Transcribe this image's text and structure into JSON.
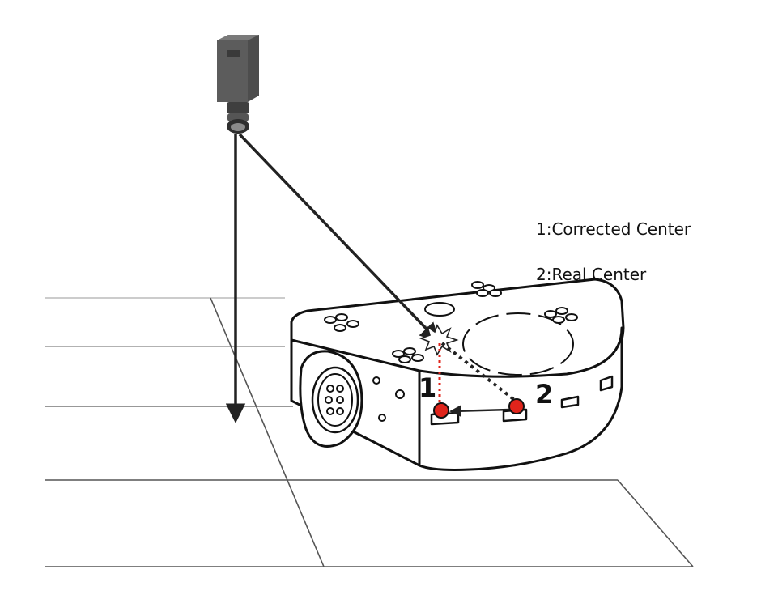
{
  "legend": {
    "item1": "1:Corrected Center",
    "item2": "2:Real Center"
  },
  "markers": {
    "corrected_label": "1",
    "real_label": "2"
  },
  "icons": {
    "camera": "camera-icon",
    "robot": "robot-icon",
    "impact": "impact-burst-icon"
  },
  "colors": {
    "line": "#222222",
    "floor_grid": "#555555",
    "center_dot": "#e0241b",
    "red_dotted_line": "#e0241b",
    "camera_body": "#5a5a5a"
  }
}
